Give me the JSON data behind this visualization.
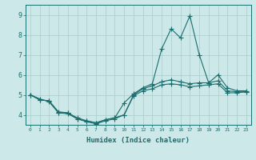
{
  "xlabel": "Humidex (Indice chaleur)",
  "ylabel": "",
  "xlim": [
    -0.5,
    23.5
  ],
  "ylim": [
    3.5,
    9.5
  ],
  "yticks": [
    4,
    5,
    6,
    7,
    8,
    9
  ],
  "xticks": [
    0,
    1,
    2,
    3,
    4,
    5,
    6,
    7,
    8,
    9,
    10,
    11,
    12,
    13,
    14,
    15,
    16,
    17,
    18,
    19,
    20,
    21,
    22,
    23
  ],
  "bg_color": "#cce8e8",
  "line_color": "#1a6e6e",
  "grid_color": "#aacccc",
  "line1_y": [
    5.0,
    4.8,
    4.65,
    4.1,
    4.05,
    3.8,
    3.65,
    3.55,
    3.7,
    3.8,
    4.0,
    4.95,
    5.2,
    5.3,
    5.5,
    5.55,
    5.5,
    5.4,
    5.45,
    5.5,
    5.55,
    5.1,
    5.1,
    5.15
  ],
  "line2_y": [
    5.0,
    4.75,
    4.7,
    4.1,
    4.1,
    3.8,
    3.7,
    3.6,
    3.75,
    3.85,
    4.6,
    5.05,
    5.35,
    5.55,
    7.3,
    8.3,
    7.85,
    8.95,
    7.0,
    5.6,
    6.0,
    5.35,
    5.2,
    5.2
  ],
  "line3_y": [
    5.0,
    4.75,
    4.7,
    4.15,
    4.1,
    3.85,
    3.7,
    3.6,
    3.75,
    3.85,
    4.0,
    5.0,
    5.3,
    5.45,
    5.65,
    5.75,
    5.65,
    5.55,
    5.6,
    5.6,
    5.7,
    5.2,
    5.15,
    5.15
  ],
  "markersize": 2.5,
  "linewidth": 0.8
}
